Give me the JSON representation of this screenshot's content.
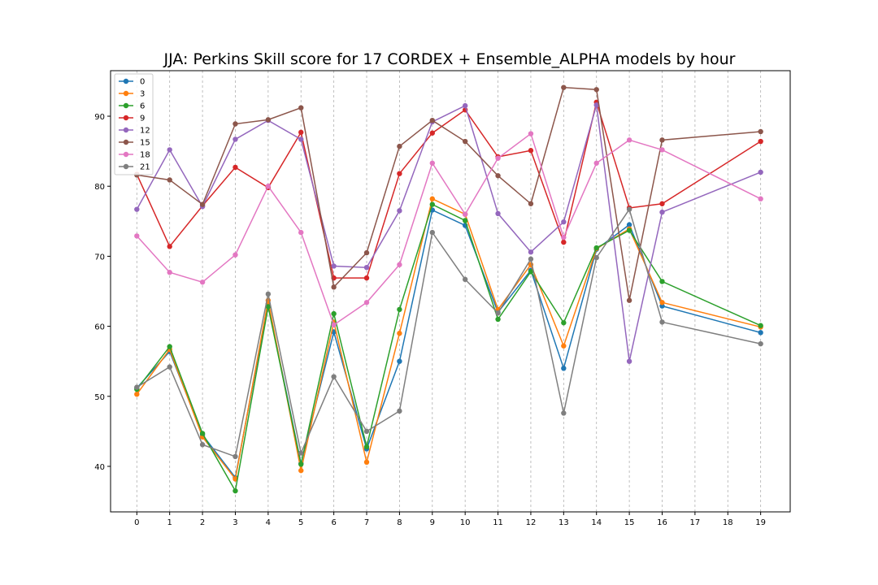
{
  "chart_data": {
    "type": "line",
    "title": "JJA: Perkins Skill score for 17 CORDEX + Ensemble_ALPHA models by hour",
    "xlabel": "",
    "ylabel": "",
    "x": [
      0,
      1,
      2,
      3,
      4,
      5,
      6,
      7,
      8,
      9,
      10,
      11,
      12,
      13,
      14,
      15,
      16,
      19
    ],
    "xticks": [
      "0",
      "1",
      "2",
      "3",
      "4",
      "5",
      "6",
      "7",
      "8",
      "9",
      "10",
      "11",
      "12",
      "13",
      "14",
      "15",
      "16",
      "17",
      "18",
      "19"
    ],
    "yticks": [
      "40",
      "50",
      "60",
      "70",
      "80",
      "90"
    ],
    "xlim": [
      -0.8,
      19.9
    ],
    "ylim": [
      33.5,
      96.5
    ],
    "grid": "vertical dashed",
    "legend_position": "top-left",
    "series": [
      {
        "name": "0",
        "color": "#1f77b4",
        "values": [
          51.2,
          56.4,
          44.5,
          38.4,
          63.2,
          40.4,
          59.2,
          42.5,
          55.0,
          76.6,
          74.4,
          62.0,
          68.0,
          54.0,
          71.0,
          74.5,
          62.9,
          59.1
        ]
      },
      {
        "name": "3",
        "color": "#ff7f0e",
        "values": [
          50.3,
          56.7,
          44.2,
          38.2,
          63.7,
          39.4,
          60.6,
          40.6,
          59.0,
          78.2,
          76.0,
          62.4,
          68.8,
          57.2,
          71.1,
          73.9,
          63.4,
          59.9
        ]
      },
      {
        "name": "6",
        "color": "#2ca02c",
        "values": [
          51.0,
          57.1,
          44.7,
          36.5,
          62.8,
          40.3,
          61.8,
          42.8,
          62.4,
          77.4,
          75.1,
          61.0,
          67.8,
          60.5,
          71.2,
          73.7,
          66.4,
          60.1
        ]
      },
      {
        "name": "9",
        "color": "#d62728",
        "values": [
          81.7,
          71.4,
          77.2,
          82.7,
          79.8,
          87.7,
          66.9,
          66.9,
          81.8,
          87.6,
          90.9,
          84.2,
          85.1,
          72.0,
          92.0,
          76.9,
          77.5,
          86.4
        ]
      },
      {
        "name": "12",
        "color": "#9467bd",
        "values": [
          76.7,
          85.2,
          77.1,
          86.7,
          89.4,
          86.7,
          68.6,
          68.4,
          76.5,
          89.2,
          91.5,
          76.1,
          70.6,
          74.9,
          91.6,
          55.0,
          76.3,
          82.0
        ]
      },
      {
        "name": "15",
        "color": "#8c564b",
        "values": [
          81.6,
          80.9,
          77.4,
          88.9,
          89.5,
          91.2,
          65.6,
          70.5,
          85.7,
          89.4,
          86.4,
          81.5,
          77.5,
          94.1,
          93.8,
          63.7,
          86.6,
          87.8
        ]
      },
      {
        "name": "18",
        "color": "#e377c2",
        "values": [
          72.9,
          67.7,
          66.3,
          70.2,
          80.0,
          73.4,
          60.2,
          63.4,
          68.8,
          83.3,
          76.0,
          84.0,
          87.5,
          72.7,
          83.3,
          86.6,
          85.2,
          78.2
        ]
      },
      {
        "name": "21",
        "color": "#7f7f7f",
        "values": [
          51.3,
          54.2,
          43.1,
          41.4,
          64.6,
          41.9,
          52.8,
          45.0,
          47.9,
          73.4,
          66.7,
          61.9,
          69.6,
          47.6,
          69.8,
          76.7,
          60.6,
          57.5
        ]
      }
    ]
  }
}
